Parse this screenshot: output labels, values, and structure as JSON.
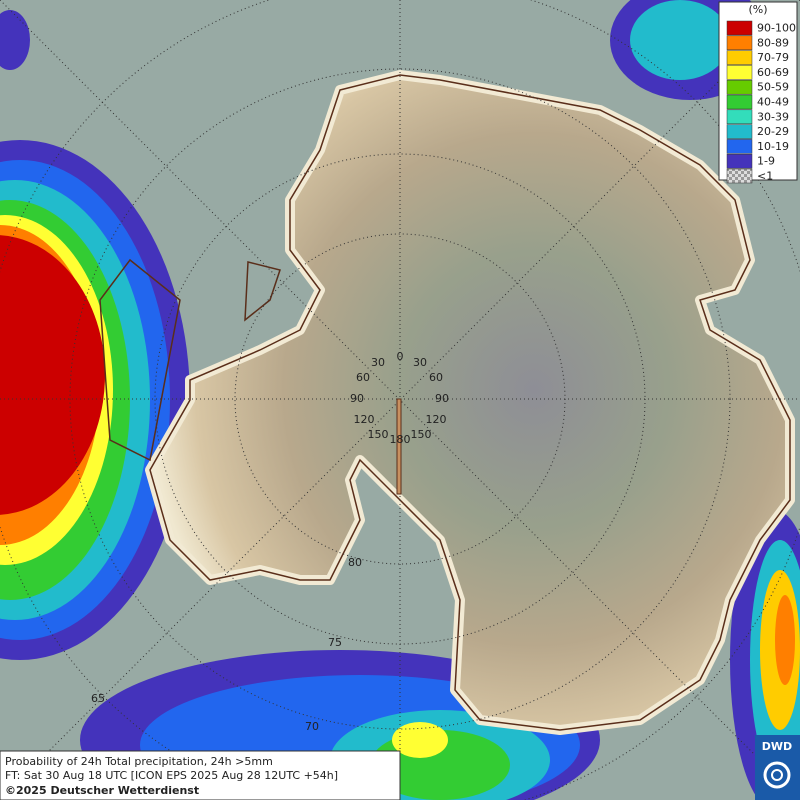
{
  "legend": {
    "title": "(%)",
    "items": [
      {
        "label": "90-100",
        "color": "#cc0000"
      },
      {
        "label": "80-89",
        "color": "#ff7f00"
      },
      {
        "label": "70-79",
        "color": "#ffcc00"
      },
      {
        "label": "60-69",
        "color": "#ffff33"
      },
      {
        "label": "50-59",
        "color": "#66cc00"
      },
      {
        "label": "40-49",
        "color": "#33cc33"
      },
      {
        "label": "30-39",
        "color": "#33ddbb"
      },
      {
        "label": "20-29",
        "color": "#22bbcc"
      },
      {
        "label": "10-19",
        "color": "#2266ee"
      },
      {
        "label": "1-9",
        "color": "#4433bb"
      },
      {
        "label": "<1",
        "color": "#aaaaaa"
      }
    ]
  },
  "graticule": {
    "longitude_labels": [
      "0",
      "30",
      "30",
      "60",
      "60",
      "90",
      "90",
      "120",
      "120",
      "150",
      "150",
      "180"
    ],
    "latitude_labels": [
      "80",
      "75",
      "70",
      "65"
    ]
  },
  "caption": {
    "line1": "Probability of 24h Total precipitation, 24h >5mm",
    "line2": "FT: Sat 30 Aug 18 UTC [ICON EPS 2025 Aug 28 12UTC +54h]",
    "line3": "©2025 Deutscher Wetterdienst"
  },
  "logo": "DWD"
}
